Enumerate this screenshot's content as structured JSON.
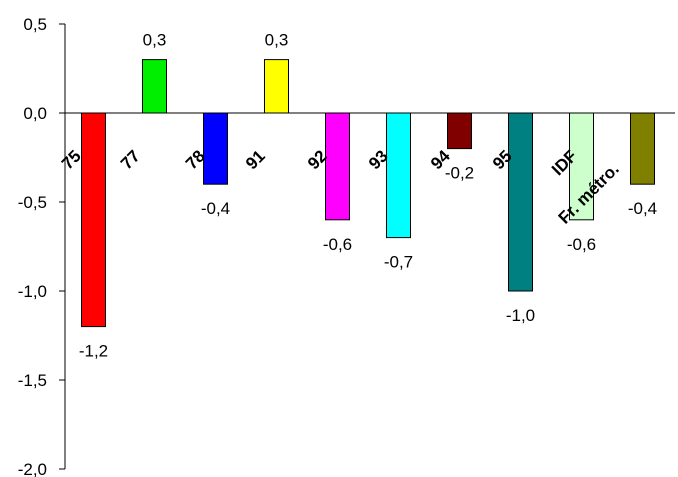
{
  "chart_data": {
    "type": "bar",
    "categories": [
      "75",
      "77",
      "78",
      "91",
      "92",
      "93",
      "94",
      "95",
      "IDF",
      "Fr. métro."
    ],
    "values": [
      -1.2,
      0.3,
      -0.4,
      0.3,
      -0.6,
      -0.7,
      -0.2,
      -1.0,
      -0.6,
      -0.4
    ],
    "value_labels": [
      "-1,2",
      "0,3",
      "-0,4",
      "0,3",
      "-0,6",
      "-0,7",
      "-0,2",
      "-1,0",
      "-0,6",
      "-0,4"
    ],
    "colors": [
      "#ff0000",
      "#00ee00",
      "#0000ff",
      "#ffff00",
      "#ff00ff",
      "#00ffff",
      "#800000",
      "#008080",
      "#ccffcc",
      "#808000"
    ],
    "ylim": [
      -2.0,
      0.5
    ],
    "yticks": [
      0.5,
      0.0,
      -0.5,
      -1.0,
      -1.5,
      -2.0
    ],
    "ytick_labels": [
      "0,5",
      "0,0",
      "-0,5",
      "-1,0",
      "-1,5",
      "-2,0"
    ],
    "title": "",
    "xlabel": "",
    "ylabel": "",
    "grid": false,
    "legend": "none"
  }
}
